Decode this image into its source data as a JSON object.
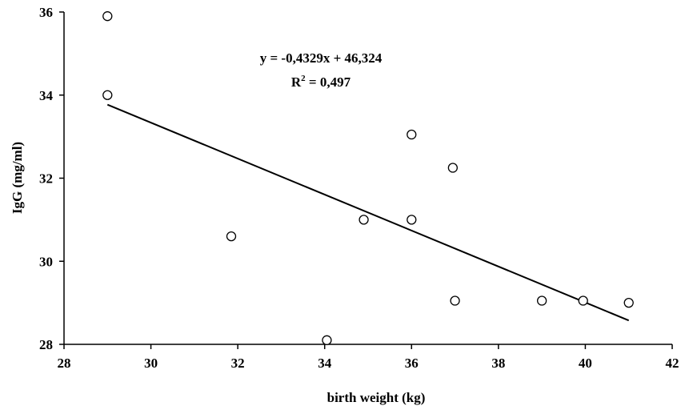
{
  "chart_data": {
    "type": "scatter",
    "xlabel": "birth weight (kg)",
    "ylabel": "IgG (mg/ml)",
    "xlim": [
      28,
      42
    ],
    "ylim": [
      28,
      36
    ],
    "xticks": [
      28,
      30,
      32,
      34,
      36,
      38,
      40,
      42
    ],
    "yticks": [
      28,
      30,
      32,
      34,
      36
    ],
    "grid": false,
    "points": [
      {
        "x": 29.0,
        "y": 35.9
      },
      {
        "x": 29.0,
        "y": 34.0
      },
      {
        "x": 31.85,
        "y": 30.6
      },
      {
        "x": 34.05,
        "y": 28.1
      },
      {
        "x": 34.9,
        "y": 31.0
      },
      {
        "x": 36.0,
        "y": 33.05
      },
      {
        "x": 36.0,
        "y": 31.0
      },
      {
        "x": 36.95,
        "y": 32.25
      },
      {
        "x": 37.0,
        "y": 29.05
      },
      {
        "x": 39.0,
        "y": 29.05
      },
      {
        "x": 39.95,
        "y": 29.05
      },
      {
        "x": 41.0,
        "y": 29.0
      }
    ],
    "trendline": {
      "slope": -0.4329,
      "intercept": 46.324,
      "x_range": [
        29,
        41
      ],
      "equation": "y = -0,4329x + 46,324",
      "r2_prefix": "R",
      "r2_sup": "2",
      "r2_suffix": " = 0,497"
    }
  }
}
